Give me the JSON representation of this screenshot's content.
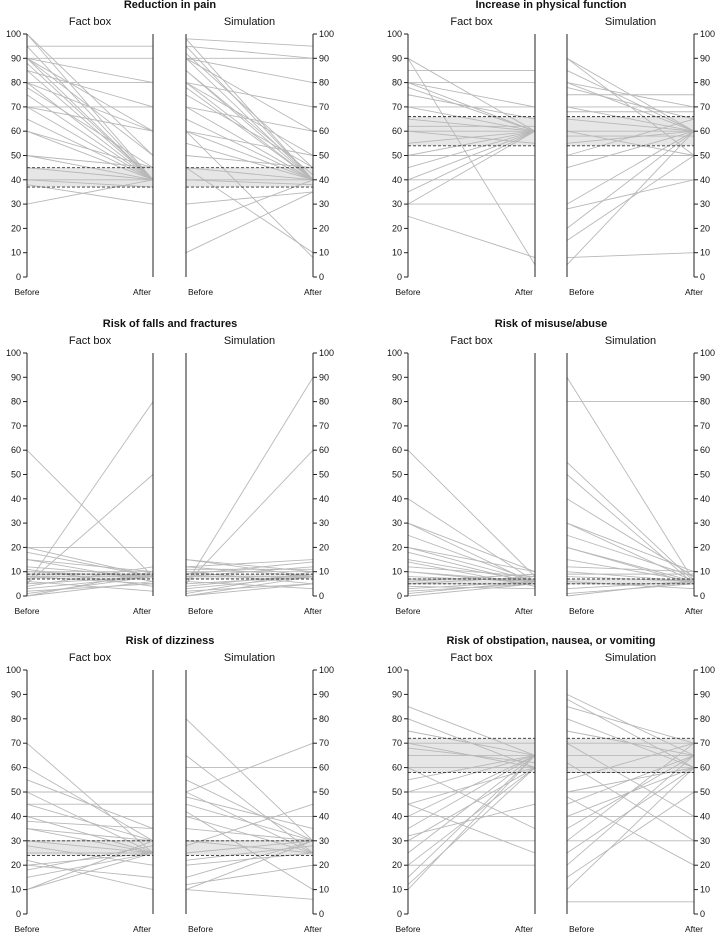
{
  "chart_data": [
    {
      "type": "slope",
      "title": "Reduction in pain",
      "left_label": "Fact box",
      "right_label": "Simulation",
      "x_labels": [
        "Before",
        "After",
        "Before",
        "After"
      ],
      "ylim": [
        0,
        100
      ],
      "yticks": [
        0,
        10,
        20,
        30,
        40,
        50,
        60,
        70,
        80,
        90,
        100
      ],
      "band": [
        37,
        45
      ],
      "fact_box": [
        [
          100,
          40
        ],
        [
          100,
          50
        ],
        [
          95,
          40
        ],
        [
          95,
          95
        ],
        [
          90,
          40
        ],
        [
          90,
          50
        ],
        [
          90,
          80
        ],
        [
          90,
          60
        ],
        [
          88,
          40
        ],
        [
          85,
          40
        ],
        [
          85,
          70
        ],
        [
          80,
          40
        ],
        [
          80,
          60
        ],
        [
          80,
          80
        ],
        [
          78,
          45
        ],
        [
          75,
          40
        ],
        [
          70,
          40
        ],
        [
          70,
          60
        ],
        [
          60,
          40
        ],
        [
          60,
          45
        ],
        [
          50,
          40
        ],
        [
          50,
          45
        ],
        [
          45,
          40
        ],
        [
          40,
          40
        ],
        [
          40,
          37
        ],
        [
          30,
          40
        ],
        [
          38,
          30
        ],
        [
          90,
          90
        ],
        [
          70,
          70
        ],
        [
          65,
          40
        ]
      ],
      "simulation": [
        [
          98,
          40
        ],
        [
          98,
          95
        ],
        [
          95,
          40
        ],
        [
          95,
          90
        ],
        [
          92,
          45
        ],
        [
          90,
          40
        ],
        [
          90,
          60
        ],
        [
          90,
          80
        ],
        [
          85,
          40
        ],
        [
          85,
          42
        ],
        [
          80,
          40
        ],
        [
          80,
          50
        ],
        [
          80,
          70
        ],
        [
          78,
          40
        ],
        [
          75,
          45
        ],
        [
          70,
          40
        ],
        [
          70,
          60
        ],
        [
          65,
          40
        ],
        [
          60,
          40
        ],
        [
          60,
          50
        ],
        [
          55,
          40
        ],
        [
          50,
          45
        ],
        [
          45,
          40
        ],
        [
          40,
          38
        ],
        [
          40,
          40
        ],
        [
          30,
          35
        ],
        [
          20,
          40
        ],
        [
          10,
          35
        ],
        [
          45,
          10
        ],
        [
          60,
          8
        ],
        [
          90,
          90
        ]
      ]
    },
    {
      "type": "slope",
      "title": "Increase in physical function",
      "left_label": "Fact box",
      "right_label": "Simulation",
      "x_labels": [
        "Before",
        "After",
        "Before",
        "After"
      ],
      "ylim": [
        0,
        100
      ],
      "yticks": [
        0,
        10,
        20,
        30,
        40,
        50,
        60,
        70,
        80,
        90,
        100
      ],
      "band": [
        54,
        66
      ],
      "fact_box": [
        [
          90,
          60
        ],
        [
          90,
          5
        ],
        [
          85,
          85
        ],
        [
          80,
          60
        ],
        [
          80,
          70
        ],
        [
          78,
          60
        ],
        [
          75,
          65
        ],
        [
          70,
          60
        ],
        [
          70,
          70
        ],
        [
          65,
          60
        ],
        [
          60,
          60
        ],
        [
          60,
          55
        ],
        [
          55,
          60
        ],
        [
          50,
          50
        ],
        [
          45,
          60
        ],
        [
          40,
          60
        ],
        [
          40,
          40
        ],
        [
          35,
          60
        ],
        [
          30,
          30
        ],
        [
          30,
          60
        ],
        [
          25,
          8
        ],
        [
          80,
          80
        ],
        [
          50,
          60
        ],
        [
          62,
          62
        ]
      ],
      "simulation": [
        [
          90,
          60
        ],
        [
          90,
          50
        ],
        [
          85,
          60
        ],
        [
          80,
          70
        ],
        [
          80,
          60
        ],
        [
          78,
          65
        ],
        [
          75,
          75
        ],
        [
          70,
          70
        ],
        [
          70,
          60
        ],
        [
          65,
          60
        ],
        [
          60,
          60
        ],
        [
          60,
          50
        ],
        [
          55,
          60
        ],
        [
          50,
          50
        ],
        [
          50,
          65
        ],
        [
          45,
          60
        ],
        [
          40,
          40
        ],
        [
          30,
          60
        ],
        [
          28,
          40
        ],
        [
          20,
          60
        ],
        [
          15,
          50
        ],
        [
          8,
          10
        ],
        [
          5,
          60
        ],
        [
          68,
          68
        ],
        [
          58,
          58
        ]
      ]
    },
    {
      "type": "slope",
      "title": "Risk of falls and fractures",
      "left_label": "Fact box",
      "right_label": "Simulation",
      "x_labels": [
        "Before",
        "After",
        "Before",
        "After"
      ],
      "ylim": [
        0,
        100
      ],
      "yticks": [
        0,
        10,
        20,
        30,
        40,
        50,
        60,
        70,
        80,
        90,
        100
      ],
      "band": [
        7,
        9
      ],
      "fact_box": [
        [
          60,
          8
        ],
        [
          20,
          20
        ],
        [
          20,
          8
        ],
        [
          18,
          8
        ],
        [
          15,
          10
        ],
        [
          12,
          8
        ],
        [
          10,
          8
        ],
        [
          10,
          10
        ],
        [
          8,
          8
        ],
        [
          8,
          5
        ],
        [
          5,
          80
        ],
        [
          5,
          50
        ],
        [
          5,
          8
        ],
        [
          3,
          8
        ],
        [
          2,
          5
        ],
        [
          1,
          8
        ],
        [
          0,
          10
        ],
        [
          0,
          6
        ],
        [
          15,
          6
        ],
        [
          4,
          12
        ],
        [
          6,
          2
        ],
        [
          9,
          9
        ],
        [
          11,
          4
        ]
      ],
      "simulation": [
        [
          15,
          8
        ],
        [
          15,
          10
        ],
        [
          12,
          15
        ],
        [
          12,
          8
        ],
        [
          10,
          10
        ],
        [
          10,
          5
        ],
        [
          8,
          8
        ],
        [
          8,
          12
        ],
        [
          5,
          90
        ],
        [
          5,
          60
        ],
        [
          5,
          8
        ],
        [
          3,
          8
        ],
        [
          2,
          5
        ],
        [
          1,
          10
        ],
        [
          0,
          8
        ],
        [
          0,
          5
        ],
        [
          9,
          14
        ],
        [
          6,
          3
        ],
        [
          4,
          9
        ],
        [
          11,
          11
        ]
      ]
    },
    {
      "type": "slope",
      "title": "Risk of misuse/abuse",
      "left_label": "Fact box",
      "right_label": "Simulation",
      "x_labels": [
        "Before",
        "After",
        "Before",
        "After"
      ],
      "ylim": [
        0,
        100
      ],
      "yticks": [
        0,
        10,
        20,
        30,
        40,
        50,
        60,
        70,
        80,
        90,
        100
      ],
      "band": [
        5,
        7
      ],
      "fact_box": [
        [
          60,
          8
        ],
        [
          40,
          6
        ],
        [
          30,
          5
        ],
        [
          30,
          10
        ],
        [
          25,
          6
        ],
        [
          20,
          6
        ],
        [
          20,
          10
        ],
        [
          18,
          5
        ],
        [
          15,
          6
        ],
        [
          12,
          8
        ],
        [
          10,
          6
        ],
        [
          10,
          5
        ],
        [
          8,
          6
        ],
        [
          5,
          5
        ],
        [
          5,
          8
        ],
        [
          3,
          6
        ],
        [
          2,
          5
        ],
        [
          1,
          6
        ],
        [
          0,
          5
        ],
        [
          6,
          9
        ],
        [
          4,
          3
        ],
        [
          7,
          7
        ],
        [
          14,
          4
        ]
      ],
      "simulation": [
        [
          90,
          6
        ],
        [
          55,
          6
        ],
        [
          50,
          5
        ],
        [
          40,
          8
        ],
        [
          30,
          6
        ],
        [
          30,
          10
        ],
        [
          25,
          8
        ],
        [
          20,
          6
        ],
        [
          20,
          5
        ],
        [
          15,
          6
        ],
        [
          12,
          10
        ],
        [
          10,
          6
        ],
        [
          8,
          6
        ],
        [
          5,
          5
        ],
        [
          3,
          6
        ],
        [
          1,
          5
        ],
        [
          0,
          6
        ],
        [
          80,
          80
        ],
        [
          6,
          3
        ],
        [
          9,
          9
        ]
      ]
    },
    {
      "type": "slope",
      "title": "Risk of dizziness",
      "left_label": "Fact box",
      "right_label": "Simulation",
      "x_labels": [
        "Before",
        "After",
        "Before",
        "After"
      ],
      "ylim": [
        0,
        100
      ],
      "yticks": [
        0,
        10,
        20,
        30,
        40,
        50,
        60,
        70,
        80,
        90,
        100
      ],
      "band": [
        24,
        30
      ],
      "fact_box": [
        [
          70,
          25
        ],
        [
          60,
          30
        ],
        [
          50,
          50
        ],
        [
          50,
          25
        ],
        [
          45,
          30
        ],
        [
          40,
          40
        ],
        [
          40,
          25
        ],
        [
          35,
          30
        ],
        [
          35,
          25
        ],
        [
          30,
          30
        ],
        [
          30,
          25
        ],
        [
          28,
          20
        ],
        [
          25,
          25
        ],
        [
          20,
          25
        ],
        [
          20,
          15
        ],
        [
          15,
          25
        ],
        [
          10,
          25
        ],
        [
          10,
          30
        ],
        [
          45,
          45
        ],
        [
          38,
          35
        ],
        [
          22,
          10
        ],
        [
          18,
          28
        ],
        [
          55,
          35
        ]
      ],
      "simulation": [
        [
          80,
          30
        ],
        [
          65,
          25
        ],
        [
          60,
          60
        ],
        [
          55,
          30
        ],
        [
          50,
          25
        ],
        [
          50,
          70
        ],
        [
          45,
          30
        ],
        [
          40,
          40
        ],
        [
          40,
          25
        ],
        [
          35,
          30
        ],
        [
          30,
          25
        ],
        [
          30,
          30
        ],
        [
          25,
          30
        ],
        [
          20,
          25
        ],
        [
          15,
          30
        ],
        [
          12,
          20
        ],
        [
          10,
          6
        ],
        [
          10,
          30
        ],
        [
          48,
          35
        ],
        [
          42,
          10
        ],
        [
          28,
          45
        ],
        [
          22,
          28
        ]
      ]
    },
    {
      "type": "slope",
      "title": "Risk of obstipation, nausea, or vomiting",
      "left_label": "Fact box",
      "right_label": "Simulation",
      "x_labels": [
        "Before",
        "After",
        "Before",
        "After"
      ],
      "ylim": [
        0,
        100
      ],
      "yticks": [
        0,
        10,
        20,
        30,
        40,
        50,
        60,
        70,
        80,
        90,
        100
      ],
      "band": [
        58,
        72
      ],
      "fact_box": [
        [
          85,
          65
        ],
        [
          80,
          60
        ],
        [
          75,
          65
        ],
        [
          70,
          70
        ],
        [
          70,
          60
        ],
        [
          65,
          65
        ],
        [
          60,
          60
        ],
        [
          55,
          65
        ],
        [
          50,
          50
        ],
        [
          50,
          65
        ],
        [
          45,
          60
        ],
        [
          40,
          40
        ],
        [
          40,
          65
        ],
        [
          35,
          65
        ],
        [
          30,
          60
        ],
        [
          30,
          30
        ],
        [
          25,
          65
        ],
        [
          20,
          60
        ],
        [
          20,
          20
        ],
        [
          15,
          65
        ],
        [
          12,
          60
        ],
        [
          10,
          65
        ],
        [
          60,
          35
        ],
        [
          45,
          25
        ],
        [
          68,
          62
        ],
        [
          32,
          45
        ]
      ],
      "simulation": [
        [
          90,
          65
        ],
        [
          88,
          60
        ],
        [
          85,
          70
        ],
        [
          80,
          60
        ],
        [
          75,
          65
        ],
        [
          70,
          70
        ],
        [
          70,
          40
        ],
        [
          65,
          65
        ],
        [
          60,
          60
        ],
        [
          55,
          70
        ],
        [
          50,
          60
        ],
        [
          50,
          50
        ],
        [
          45,
          65
        ],
        [
          40,
          40
        ],
        [
          40,
          60
        ],
        [
          35,
          65
        ],
        [
          30,
          30
        ],
        [
          30,
          70
        ],
        [
          25,
          60
        ],
        [
          20,
          65
        ],
        [
          15,
          50
        ],
        [
          10,
          60
        ],
        [
          5,
          5
        ],
        [
          62,
          30
        ],
        [
          48,
          20
        ],
        [
          58,
          58
        ]
      ]
    }
  ]
}
